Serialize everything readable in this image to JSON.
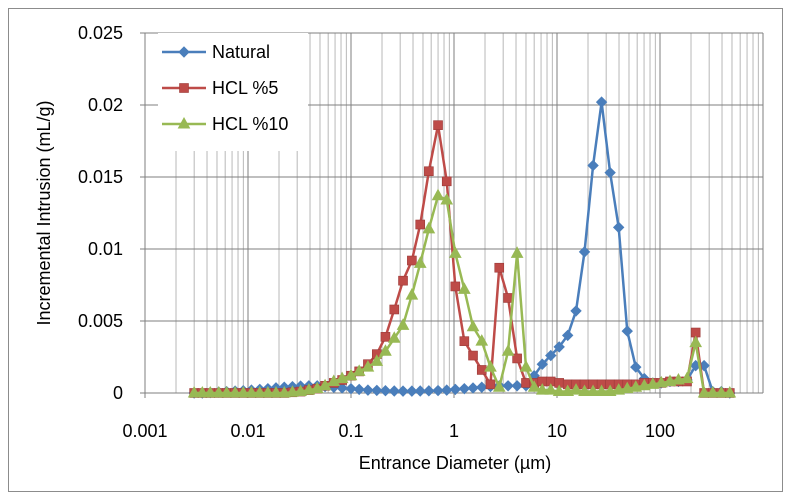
{
  "chart_data": {
    "type": "scatter",
    "title": "",
    "xlabel": "Entrance Diameter (µm)",
    "ylabel": "Incremental Intrusion (mL/g)",
    "x_scale": "log",
    "xlim": [
      0.001,
      1000
    ],
    "ylim": [
      0,
      0.025
    ],
    "x_ticks": [
      "0.001",
      "0.01",
      "0.1",
      "1",
      "10",
      "100"
    ],
    "y_ticks": [
      "0",
      "0.005",
      "0.01",
      "0.015",
      "0.02",
      "0.025"
    ],
    "grid": true,
    "legend_position": "top-left",
    "series": [
      {
        "name": "Natural",
        "color": "#4a7ebb",
        "marker": "diamond",
        "x": [
          0.003,
          0.0036,
          0.0043,
          0.0052,
          0.0062,
          0.0075,
          0.009,
          0.0108,
          0.013,
          0.0156,
          0.0187,
          0.0225,
          0.027,
          0.0324,
          0.039,
          0.047,
          0.056,
          0.068,
          0.082,
          0.1,
          0.12,
          0.146,
          0.178,
          0.216,
          0.263,
          0.32,
          0.39,
          0.47,
          0.57,
          0.7,
          0.85,
          1.03,
          1.26,
          1.53,
          1.86,
          2.26,
          2.75,
          3.35,
          4.1,
          5.0,
          6.0,
          7.2,
          8.7,
          10.5,
          12.7,
          15.3,
          18.5,
          22.4,
          27.1,
          32.8,
          39.7,
          48.1,
          58.2,
          70.4,
          85.2,
          103,
          125,
          151,
          183,
          222,
          268,
          325,
          394,
          476
        ],
        "y": [
          0,
          0,
          3e-05,
          6e-05,
          0.0001,
          0.00013,
          0.00016,
          0.0002,
          0.00025,
          0.0003,
          0.00036,
          0.0004,
          0.00044,
          0.00048,
          0.0005,
          0.0005,
          0.00045,
          0.0004,
          0.00035,
          0.0003,
          0.00025,
          0.0002,
          0.00018,
          0.00016,
          0.00014,
          0.00013,
          0.00013,
          0.00014,
          0.00015,
          0.00017,
          0.0002,
          0.00025,
          0.0003,
          0.00035,
          0.0004,
          0.00045,
          0.0005,
          0.0005,
          0.0005,
          0.0005,
          0.0012,
          0.002,
          0.0026,
          0.0032,
          0.004,
          0.0057,
          0.0098,
          0.0158,
          0.0202,
          0.0153,
          0.0115,
          0.0043,
          0.0018,
          0.001,
          0.0007,
          0.0007,
          0.0008,
          0.0008,
          0.0009,
          0.0019,
          0.0019,
          0.0001,
          0.0001,
          0.0
        ],
        "x_fix": true
      },
      {
        "name": "HCL %5",
        "color": "#be4b48",
        "marker": "square",
        "x": [
          0.003,
          0.0036,
          0.0043,
          0.0052,
          0.0062,
          0.0075,
          0.009,
          0.0108,
          0.013,
          0.0156,
          0.0187,
          0.0225,
          0.027,
          0.0324,
          0.039,
          0.047,
          0.056,
          0.068,
          0.082,
          0.1,
          0.12,
          0.146,
          0.178,
          0.216,
          0.263,
          0.32,
          0.39,
          0.47,
          0.57,
          0.7,
          0.85,
          1.03,
          1.26,
          1.53,
          1.86,
          2.26,
          2.75,
          3.35,
          4.1,
          5.0,
          6.0,
          7.2,
          8.7,
          10.5,
          12.7,
          15.3,
          18.5,
          22.4,
          27.1,
          32.8,
          39.7,
          48.1,
          58.2,
          70.4,
          85.2,
          103,
          125,
          151,
          183,
          222,
          268,
          325,
          394,
          476
        ],
        "y": [
          0,
          0,
          0,
          0,
          0,
          0,
          0,
          0,
          0,
          0,
          0,
          0,
          5e-05,
          0.0001,
          0.0002,
          0.0003,
          0.0005,
          0.0007,
          0.0009,
          0.0012,
          0.0015,
          0.002,
          0.0027,
          0.0039,
          0.0058,
          0.0078,
          0.0092,
          0.0117,
          0.0154,
          0.0186,
          0.0147,
          0.0074,
          0.0036,
          0.0026,
          0.0016,
          0.0006,
          0.0087,
          0.0066,
          0.0024,
          0.0007,
          0.0007,
          0.0008,
          0.0008,
          0.0007,
          0.0006,
          0.0006,
          0.0006,
          0.0006,
          0.0006,
          0.0006,
          0.0006,
          0.0006,
          0.0006,
          0.0007,
          0.0007,
          0.0007,
          0.0008,
          0.0008,
          0.0008,
          0.0042,
          0.0,
          0.0,
          0.0,
          0.0
        ]
      },
      {
        "name": "HCL %10",
        "color": "#98b954",
        "marker": "triangle",
        "x": [
          0.003,
          0.0036,
          0.0043,
          0.0052,
          0.0062,
          0.0075,
          0.009,
          0.0108,
          0.013,
          0.0156,
          0.0187,
          0.0225,
          0.027,
          0.0324,
          0.039,
          0.047,
          0.056,
          0.068,
          0.082,
          0.1,
          0.12,
          0.146,
          0.178,
          0.216,
          0.263,
          0.32,
          0.39,
          0.47,
          0.57,
          0.7,
          0.85,
          1.03,
          1.26,
          1.53,
          1.86,
          2.26,
          2.75,
          3.35,
          4.1,
          5.0,
          6.0,
          7.2,
          8.7,
          10.5,
          12.7,
          15.3,
          18.5,
          22.4,
          27.1,
          32.8,
          39.7,
          48.1,
          58.2,
          70.4,
          85.2,
          103,
          125,
          151,
          183,
          222,
          268,
          325,
          394,
          476
        ],
        "y": [
          0,
          0,
          0,
          0,
          0,
          0,
          0,
          0,
          0,
          0,
          0,
          0,
          5e-05,
          0.0001,
          0.0002,
          0.0003,
          0.0005,
          0.0008,
          0.001,
          0.0012,
          0.0015,
          0.0018,
          0.0022,
          0.0029,
          0.0038,
          0.0047,
          0.0068,
          0.009,
          0.0114,
          0.0137,
          0.0134,
          0.0097,
          0.0072,
          0.0046,
          0.0036,
          0.0018,
          0.0004,
          0.0029,
          0.0097,
          0.0018,
          0.0004,
          0.0002,
          0.0002,
          0.0001,
          0.0001,
          0.0002,
          0.0001,
          0.0001,
          0.0001,
          0.0001,
          0.0002,
          0.0003,
          0.0004,
          0.0005,
          0.0006,
          0.0007,
          0.0008,
          0.0009,
          0.001,
          0.0035,
          0.0,
          0.0,
          0.0,
          0.0
        ]
      }
    ]
  }
}
